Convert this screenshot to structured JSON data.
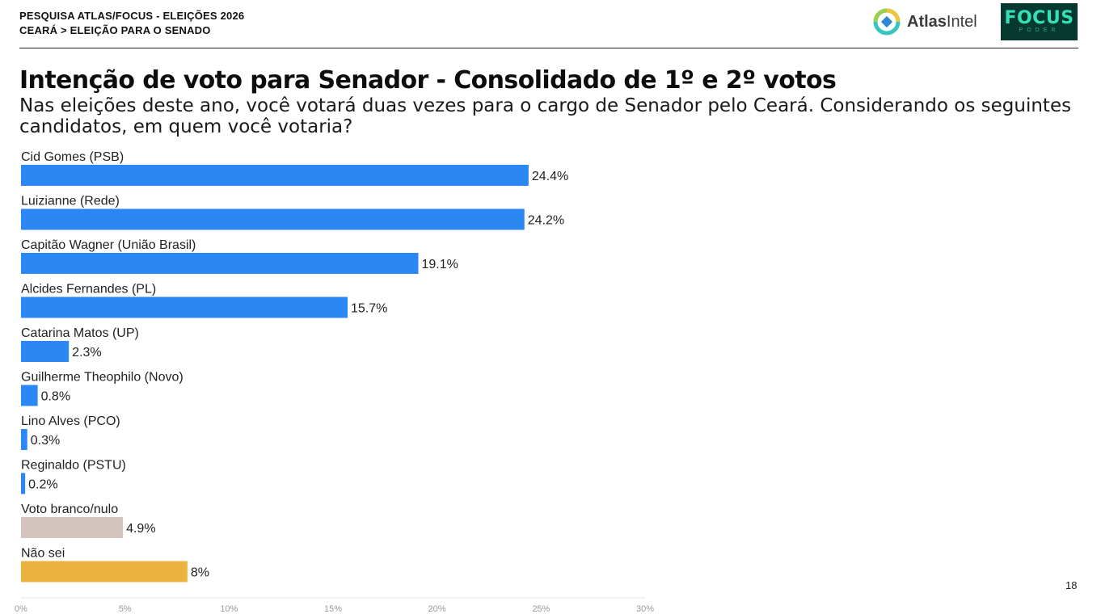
{
  "header": {
    "line1": "PESQUISA ATLAS/FOCUS - ELEIÇÕES 2026",
    "line2": "CEARÁ > ELEIÇÃO PARA O SENADO"
  },
  "logos": {
    "atlas_bold": "Atlas",
    "atlas_rest": "Intel",
    "focus_word": "FOCUS",
    "focus_sub": "PODER"
  },
  "title": "Intenção de voto para Senador - Consolidado de 1º e 2º votos",
  "subtitle": "Nas eleições deste ano, você votará duas vezes para o cargo de Senador pelo Ceará. Considerando os seguintes candidatos, em quem você votaria?",
  "page_number": "18",
  "chart_data": {
    "type": "bar",
    "orientation": "horizontal",
    "categories": [
      "Cid Gomes (PSB)",
      "Luizianne (Rede)",
      "Capitão Wagner (União Brasil)",
      "Alcides Fernandes (PL)",
      "Catarina Matos (UP)",
      "Guilherme Theophilo (Novo)",
      "Lino Alves (PCO)",
      "Reginaldo (PSTU)",
      "Voto branco/nulo",
      "Não sei"
    ],
    "values": [
      24.4,
      24.2,
      19.1,
      15.7,
      2.3,
      0.8,
      0.3,
      0.2,
      4.9,
      8
    ],
    "value_labels": [
      "24.4%",
      "24.2%",
      "19.1%",
      "15.7%",
      "2.3%",
      "0.8%",
      "0.3%",
      "0.2%",
      "4.9%",
      "8%"
    ],
    "colors": [
      "#2b87f3",
      "#2b87f3",
      "#2b87f3",
      "#2b87f3",
      "#2b87f3",
      "#2b87f3",
      "#2b87f3",
      "#2b87f3",
      "#d2c4bc",
      "#ebb33e"
    ],
    "xlim": [
      0,
      30
    ],
    "xticks": [
      0,
      5,
      10,
      15,
      20,
      25,
      30
    ],
    "xtick_labels": [
      "0%",
      "5%",
      "10%",
      "15%",
      "20%",
      "25%",
      "30%"
    ],
    "grid": false,
    "legend": "none"
  }
}
